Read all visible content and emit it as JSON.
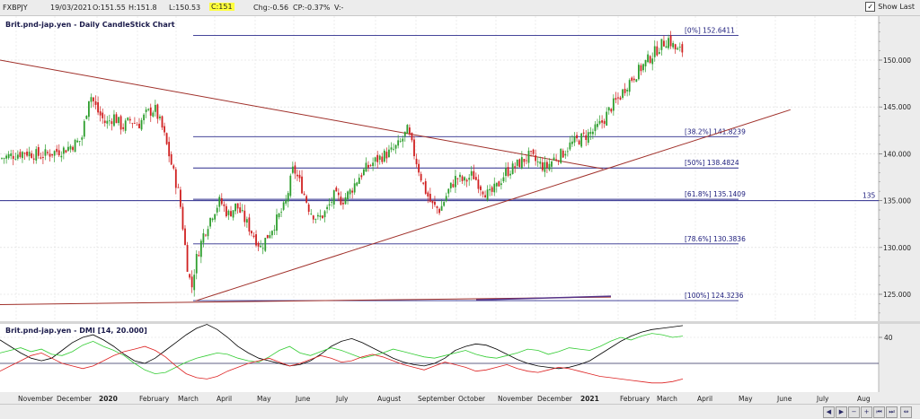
{
  "header": {
    "symbol": "FXBPJY",
    "date": "19/03/2021",
    "open": "O:151.55",
    "high": "H:151.8",
    "low": "L:150.53",
    "close": "C:151",
    "change": "Chg:-0.56",
    "change_pct": "CP:-0.37%",
    "volume": "V:-",
    "show_last_label": "Show Last",
    "show_last_checked": true
  },
  "chart_data": [
    {
      "type": "candlestick",
      "title": "Brit.pnd-jap.yen - Daily CandleStick Chart",
      "ylim": [
        122.5,
        155
      ],
      "yticks": [
        "150.000",
        "145.000",
        "140.000",
        "135.000",
        "130.000",
        "125.000"
      ],
      "ytick_values": [
        150,
        145,
        140,
        135,
        130,
        125
      ],
      "xtick_labels": [
        "November",
        "December",
        "2020",
        "February",
        "March",
        "April",
        "May",
        "June",
        "July",
        "August",
        "September",
        "October",
        "November",
        "December",
        "2021",
        "February",
        "March",
        "April",
        "May",
        "June",
        "July",
        "Aug"
      ],
      "close_path": [
        [
          0,
          139.5
        ],
        [
          3,
          140.2
        ],
        [
          5,
          139.8
        ],
        [
          8,
          140.5
        ],
        [
          10,
          141.5
        ],
        [
          11,
          146.5
        ],
        [
          12,
          144.5
        ],
        [
          13,
          143.2
        ],
        [
          14,
          144.0
        ],
        [
          15,
          142.8
        ],
        [
          16,
          143.6
        ],
        [
          17,
          143.1
        ],
        [
          18,
          144.3
        ],
        [
          19,
          144.8
        ],
        [
          20,
          142.5
        ],
        [
          21,
          139.0
        ],
        [
          22,
          135.5
        ],
        [
          23,
          128.0
        ],
        [
          23.5,
          125.5
        ],
        [
          24,
          128.5
        ],
        [
          25,
          131.5
        ],
        [
          26,
          133.5
        ],
        [
          27,
          135.0
        ],
        [
          28,
          133.5
        ],
        [
          29,
          134.5
        ],
        [
          30,
          133.0
        ],
        [
          31,
          131.5
        ],
        [
          32,
          130.0
        ],
        [
          33,
          131.5
        ],
        [
          34,
          133.0
        ],
        [
          35,
          134.5
        ],
        [
          36,
          138.5
        ],
        [
          37,
          136.5
        ],
        [
          38,
          134.0
        ],
        [
          39,
          133.0
        ],
        [
          40,
          133.8
        ],
        [
          41,
          135.5
        ],
        [
          42,
          135.0
        ],
        [
          43,
          136.0
        ],
        [
          44,
          137.5
        ],
        [
          45,
          138.5
        ],
        [
          46,
          139.2
        ],
        [
          47,
          139.8
        ],
        [
          48,
          140.2
        ],
        [
          49,
          141.0
        ],
        [
          50,
          142.5
        ],
        [
          51,
          139.5
        ],
        [
          52,
          136.5
        ],
        [
          53,
          134.5
        ],
        [
          54,
          134.0
        ],
        [
          55,
          136.0
        ],
        [
          56,
          137.5
        ],
        [
          57,
          137.0
        ],
        [
          58,
          137.8
        ],
        [
          59,
          136.5
        ],
        [
          60,
          135.5
        ],
        [
          61,
          136.5
        ],
        [
          62,
          138.0
        ],
        [
          63,
          138.5
        ],
        [
          64,
          139.2
        ],
        [
          65,
          139.8
        ],
        [
          66,
          139.0
        ],
        [
          67,
          138.5
        ],
        [
          68,
          139.5
        ],
        [
          69,
          140.0
        ],
        [
          70,
          141.0
        ],
        [
          71,
          141.5
        ],
        [
          72,
          142.0
        ],
        [
          73,
          142.5
        ],
        [
          74,
          143.5
        ],
        [
          75,
          145.0
        ],
        [
          76,
          146.0
        ],
        [
          77,
          147.5
        ],
        [
          78,
          148.5
        ],
        [
          79,
          149.5
        ],
        [
          80,
          150.5
        ],
        [
          81,
          151.5
        ],
        [
          82,
          152.3
        ],
        [
          83,
          151.0
        ]
      ],
      "fib_levels": [
        {
          "label": "[0%] 152.6411",
          "value": 152.6411
        },
        {
          "label": "[38.2%] 141.8239",
          "value": 141.8239
        },
        {
          "label": "[50%] 138.4824",
          "value": 138.4824
        },
        {
          "label": "[61.8%] 135.1409",
          "value": 135.1409
        },
        {
          "label": "[78.6%] 130.3836",
          "value": 130.3836
        },
        {
          "label": "[100%] 124.3236",
          "value": 124.3236
        }
      ],
      "horizontal_line": {
        "label": "135",
        "value": 135
      },
      "trendlines": [
        {
          "name": "descending",
          "from": [
            0,
            150
          ],
          "to": [
            74,
            138.4
          ]
        },
        {
          "name": "ascending",
          "from": [
            24,
            124.3
          ],
          "to": [
            97,
            144.7
          ]
        }
      ],
      "colors": {
        "up": "#2e9e2e",
        "down": "#d02020",
        "fib": "#2c2c8c",
        "trend": "#a0302a"
      }
    },
    {
      "type": "line",
      "title": "Brit.pnd-jap.yen - DMI [14, 20.000]",
      "yticks": [
        "40"
      ],
      "reference_level": 20,
      "series": [
        {
          "name": "",
          "color": "#000000",
          "values": [
            38,
            33,
            28,
            24,
            22,
            24,
            30,
            36,
            40,
            42,
            38,
            33,
            27,
            22,
            20,
            24,
            30,
            36,
            42,
            47,
            50,
            46,
            40,
            33,
            28,
            24,
            22,
            20,
            18,
            19,
            22,
            27,
            33,
            37,
            39,
            36,
            32,
            28,
            24,
            21,
            19,
            18,
            20,
            24,
            30,
            33,
            35,
            34,
            31,
            27,
            23,
            20,
            18,
            17,
            16,
            17,
            19,
            22,
            27,
            32,
            37,
            41,
            44,
            46,
            47,
            48,
            49
          ]
        },
        {
          "name": "",
          "color": "#33cc33",
          "values": [
            28,
            30,
            32,
            29,
            31,
            27,
            26,
            29,
            34,
            37,
            33,
            30,
            26,
            20,
            15,
            12,
            13,
            17,
            21,
            24,
            26,
            28,
            27,
            24,
            22,
            21,
            25,
            30,
            33,
            28,
            26,
            29,
            32,
            30,
            27,
            24,
            26,
            28,
            31,
            29,
            27,
            25,
            24,
            26,
            28,
            30,
            27,
            25,
            24,
            26,
            28,
            31,
            30,
            27,
            29,
            32,
            31,
            30,
            33,
            37,
            40,
            38,
            41,
            43,
            42,
            40,
            41
          ]
        },
        {
          "name": "",
          "color": "#dd2222",
          "values": [
            14,
            18,
            22,
            26,
            28,
            24,
            20,
            18,
            16,
            18,
            22,
            26,
            29,
            31,
            33,
            30,
            25,
            18,
            12,
            9,
            8,
            10,
            14,
            17,
            20,
            22,
            24,
            21,
            18,
            20,
            23,
            26,
            24,
            21,
            22,
            25,
            27,
            25,
            22,
            19,
            17,
            15,
            18,
            21,
            19,
            17,
            14,
            15,
            17,
            19,
            16,
            14,
            13,
            15,
            17,
            16,
            14,
            12,
            10,
            9,
            8,
            7,
            6,
            5,
            5,
            6,
            8
          ]
        }
      ]
    }
  ]
}
